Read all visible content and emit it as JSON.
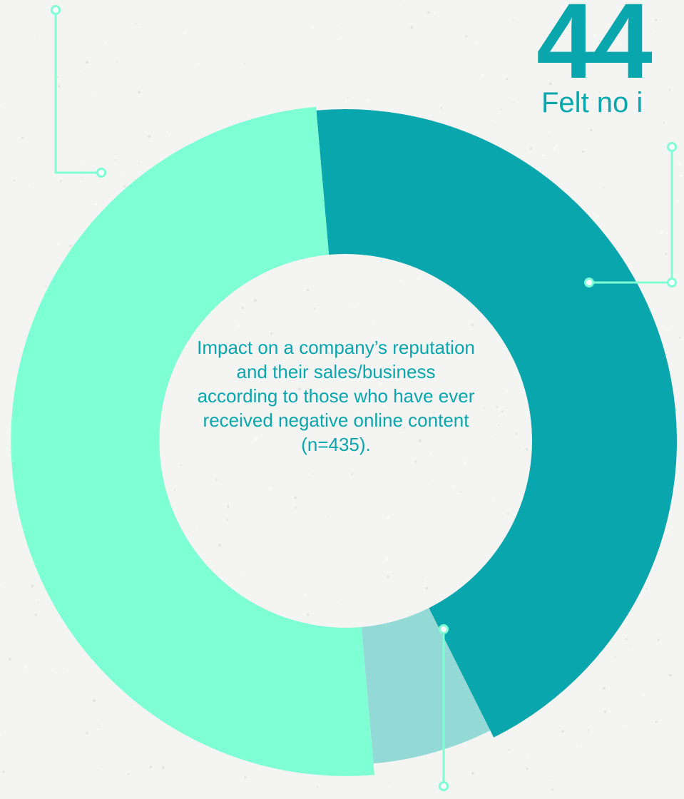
{
  "chart_data": {
    "type": "pie",
    "variant": "donut",
    "center_text": "Impact on a company’s reputation and their sales/business according to those who have ever received negative online content (n=435).",
    "slices": [
      {
        "value": 44,
        "color": "#0aa6ad"
      },
      {
        "value": 6,
        "color": "#93d9d6"
      },
      {
        "value": 50,
        "color": "#7fffd4"
      }
    ],
    "callouts": [
      {
        "value_text": "44",
        "label": "Felt no i"
      }
    ],
    "colors": {
      "connector": "#7fffd4",
      "text": "#0aa6ad",
      "background": "#f4f4f3"
    }
  }
}
